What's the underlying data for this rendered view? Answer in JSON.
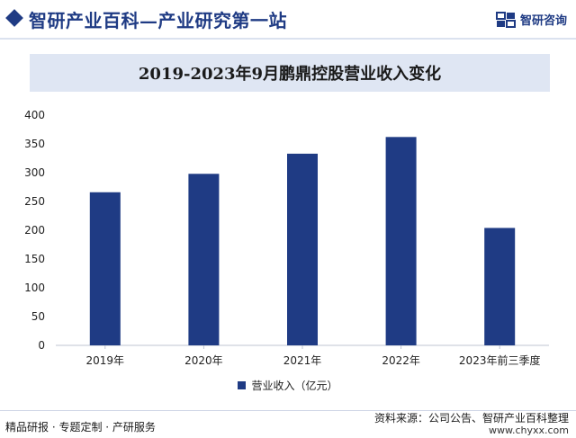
{
  "header": {
    "site_title": "智研产业百科—产业研究第一站",
    "brand_name": "智研咨询",
    "logo_icon": "zhiyan-logo-icon"
  },
  "chart_data": {
    "type": "bar",
    "title": "2019-2023年9月鹏鼎控股营业收入变化",
    "categories": [
      "2019年",
      "2020年",
      "2021年",
      "2022年",
      "2023年前三季度"
    ],
    "series": [
      {
        "name": "营业收入（亿元）",
        "values": [
          266,
          298,
          333,
          362,
          204
        ],
        "color": "#1f3b84"
      }
    ],
    "ylim": [
      0,
      400
    ],
    "yticks": [
      "0",
      "50",
      "100",
      "150",
      "200",
      "250",
      "300",
      "350",
      "400"
    ],
    "xlabel": "",
    "ylabel": "",
    "grid": false,
    "legend_position": "bottom"
  },
  "footer": {
    "left_text": "精品研报 · 专题定制 · 产研服务",
    "source_text": "资料来源：公司公告、智研产业百科整理",
    "url_text": "www.chyxx.com"
  },
  "colors": {
    "accent": "#1f3b84",
    "title_band": "#dfe6f3"
  }
}
